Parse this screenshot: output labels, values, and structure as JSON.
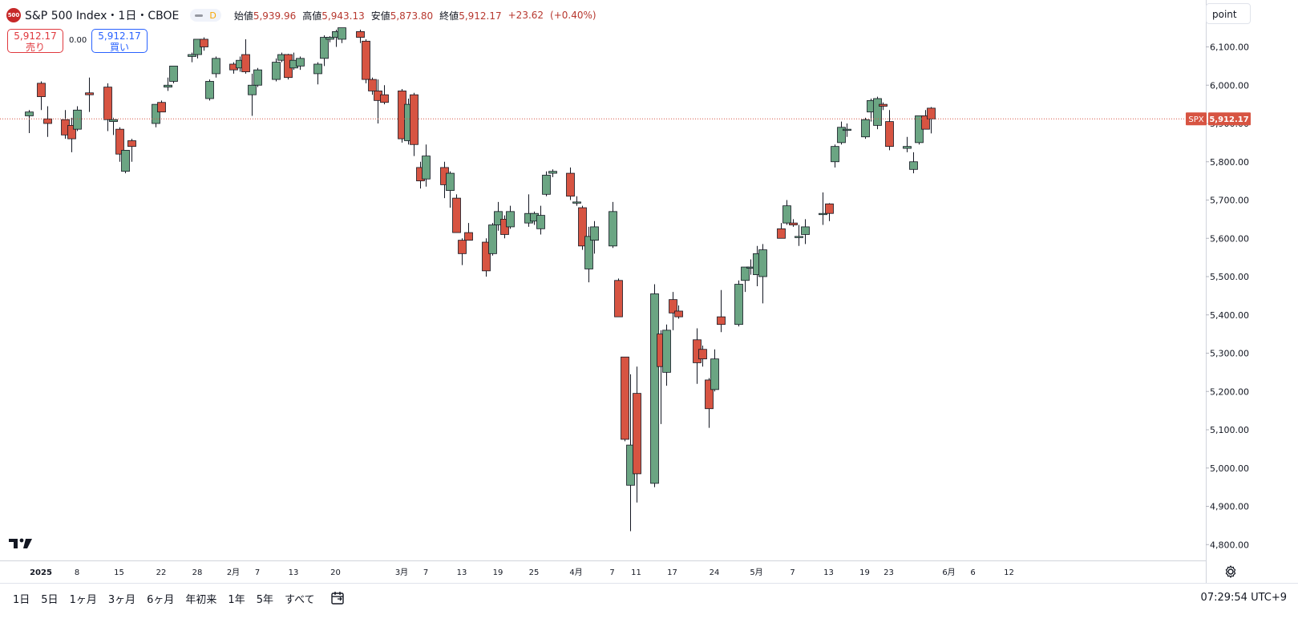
{
  "header": {
    "logo_text": "500",
    "title": "S&P 500 Index・1日・CBOE",
    "pill_d": "D",
    "ohlc": [
      {
        "label": "始値",
        "value": "5,939.96"
      },
      {
        "label": "高値",
        "value": "5,943.13"
      },
      {
        "label": "安値",
        "value": "5,873.80"
      },
      {
        "label": "終値",
        "value": "5,912.17"
      },
      {
        "label": "",
        "value": "+23.62"
      },
      {
        "label": "",
        "value": "(+0.40%)"
      }
    ]
  },
  "trade": {
    "sell_price": "5,912.17",
    "sell_label": "売り",
    "spread": "0.00",
    "buy_price": "5,912.17",
    "buy_label": "買い"
  },
  "scale_button": "point",
  "price_tag": {
    "symbol": "SPX",
    "value": "5,912.17"
  },
  "bottom": {
    "ranges": [
      "1日",
      "5日",
      "1ヶ月",
      "3ヶ月",
      "6ヶ月",
      "年初来",
      "1年",
      "5年",
      "すべて"
    ],
    "clock": "07:29:54 UTC+9"
  },
  "colors": {
    "up": "#6ba583",
    "down": "#d75442",
    "last_price_line": "#d75442"
  },
  "icons": [
    "tradingview-logo-icon",
    "calendar-icon",
    "gear-icon"
  ],
  "chart_data": {
    "type": "candlestick",
    "title": "S&P 500 Index・1日・CBOE",
    "y_ticks": [
      4800,
      4900,
      5000,
      5100,
      5200,
      5300,
      5400,
      5500,
      5600,
      5700,
      5800,
      5900,
      6000,
      6100
    ],
    "y_tick_labels": [
      "4,800.00",
      "4,900.00",
      "5,000.00",
      "5,100.00",
      "5,200.00",
      "5,300.00",
      "5,400.00",
      "5,500.00",
      "5,600.00",
      "5,700.00",
      "5,800.00",
      "5,900.00",
      "6,000.00",
      "6,100.00"
    ],
    "x_ticks": [
      {
        "date": "2025-01-02",
        "label": "2025"
      },
      {
        "date": "2025-01-08",
        "label": "8"
      },
      {
        "date": "2025-01-15",
        "label": "15"
      },
      {
        "date": "2025-01-22",
        "label": "22"
      },
      {
        "date": "2025-01-28",
        "label": "28"
      },
      {
        "date": "2025-02-03",
        "label": "2月"
      },
      {
        "date": "2025-02-07",
        "label": "7"
      },
      {
        "date": "2025-02-13",
        "label": "13"
      },
      {
        "date": "2025-02-20",
        "label": "20"
      },
      {
        "date": "2025-03-03",
        "label": "3月"
      },
      {
        "date": "2025-03-07",
        "label": "7"
      },
      {
        "date": "2025-03-13",
        "label": "13"
      },
      {
        "date": "2025-03-19",
        "label": "19"
      },
      {
        "date": "2025-03-25",
        "label": "25"
      },
      {
        "date": "2025-04-01",
        "label": "4月"
      },
      {
        "date": "2025-04-07",
        "label": "7"
      },
      {
        "date": "2025-04-11",
        "label": "11"
      },
      {
        "date": "2025-04-17",
        "label": "17"
      },
      {
        "date": "2025-04-24",
        "label": "24"
      },
      {
        "date": "2025-05-01",
        "label": "5月"
      },
      {
        "date": "2025-05-07",
        "label": "7"
      },
      {
        "date": "2025-05-13",
        "label": "13"
      },
      {
        "date": "2025-05-19",
        "label": "19"
      },
      {
        "date": "2025-05-23",
        "label": "23"
      },
      {
        "date": "2025-06-02",
        "label": "6月"
      },
      {
        "date": "2025-06-06",
        "label": "6"
      },
      {
        "date": "2025-06-12",
        "label": "12"
      }
    ],
    "last_price": 5912.17,
    "candles": [
      {
        "d": "2024-12-31",
        "o": 5920,
        "h": 5935,
        "l": 5875,
        "c": 5930
      },
      {
        "d": "2025-01-02",
        "o": 6005,
        "h": 6010,
        "l": 5935,
        "c": 5970
      },
      {
        "d": "2025-01-03",
        "o": 5912,
        "h": 5945,
        "l": 5865,
        "c": 5900
      },
      {
        "d": "2025-01-06",
        "o": 5910,
        "h": 5935,
        "l": 5860,
        "c": 5870
      },
      {
        "d": "2025-01-07",
        "o": 5895,
        "h": 5915,
        "l": 5825,
        "c": 5860
      },
      {
        "d": "2025-01-08",
        "o": 5885,
        "h": 5945,
        "l": 5880,
        "c": 5935
      },
      {
        "d": "2025-01-10",
        "o": 5980,
        "h": 6020,
        "l": 5930,
        "c": 5975
      },
      {
        "d": "2025-01-13",
        "o": 5995,
        "h": 6005,
        "l": 5880,
        "c": 5910
      },
      {
        "d": "2025-01-14",
        "o": 5905,
        "h": 5915,
        "l": 5870,
        "c": 5910
      },
      {
        "d": "2025-01-15",
        "o": 5885,
        "h": 5890,
        "l": 5800,
        "c": 5820
      },
      {
        "d": "2025-01-16",
        "o": 5775,
        "h": 5830,
        "l": 5770,
        "c": 5830
      },
      {
        "d": "2025-01-17",
        "o": 5855,
        "h": 5860,
        "l": 5800,
        "c": 5840
      },
      {
        "d": "2025-01-21",
        "o": 5900,
        "h": 5950,
        "l": 5890,
        "c": 5950
      },
      {
        "d": "2025-01-22",
        "o": 5955,
        "h": 5960,
        "l": 5930,
        "c": 5930
      },
      {
        "d": "2025-01-23",
        "o": 5995,
        "h": 6020,
        "l": 5985,
        "c": 6000
      },
      {
        "d": "2025-01-24",
        "o": 6010,
        "h": 6050,
        "l": 6005,
        "c": 6050
      },
      {
        "d": "2025-01-27",
        "o": 6075,
        "h": 6085,
        "l": 6060,
        "c": 6080
      },
      {
        "d": "2025-01-28",
        "o": 6080,
        "h": 6120,
        "l": 6070,
        "c": 6120
      },
      {
        "d": "2025-01-29",
        "o": 6120,
        "h": 6125,
        "l": 6090,
        "c": 6100
      },
      {
        "d": "2025-01-30",
        "o": 5965,
        "h": 6015,
        "l": 5960,
        "c": 6010
      },
      {
        "d": "2025-01-31",
        "o": 6030,
        "h": 6075,
        "l": 6020,
        "c": 6070
      },
      {
        "d": "2025-02-03",
        "o": 6055,
        "h": 6060,
        "l": 6030,
        "c": 6040
      },
      {
        "d": "2025-02-04",
        "o": 6045,
        "h": 6075,
        "l": 6035,
        "c": 6065
      },
      {
        "d": "2025-02-05",
        "o": 6080,
        "h": 6120,
        "l": 6030,
        "c": 6035
      },
      {
        "d": "2025-02-06",
        "o": 5975,
        "h": 6030,
        "l": 5920,
        "c": 6000
      },
      {
        "d": "2025-02-07",
        "o": 6000,
        "h": 6045,
        "l": 5995,
        "c": 6040
      },
      {
        "d": "2025-02-10",
        "o": 6015,
        "h": 6070,
        "l": 6010,
        "c": 6060
      },
      {
        "d": "2025-02-11",
        "o": 6065,
        "h": 6085,
        "l": 6060,
        "c": 6080
      },
      {
        "d": "2025-02-12",
        "o": 6080,
        "h": 6082,
        "l": 6015,
        "c": 6020
      },
      {
        "d": "2025-02-13",
        "o": 6045,
        "h": 6085,
        "l": 6040,
        "c": 6065
      },
      {
        "d": "2025-02-14",
        "o": 6050,
        "h": 6075,
        "l": 6040,
        "c": 6070
      },
      {
        "d": "2025-02-17",
        "o": 6030,
        "h": 6060,
        "l": 6002,
        "c": 6055
      },
      {
        "d": "2025-02-18",
        "o": 6070,
        "h": 6130,
        "l": 6050,
        "c": 6125
      },
      {
        "d": "2025-02-19",
        "o": 6120,
        "h": 6128,
        "l": 6112,
        "c": 6125
      },
      {
        "d": "2025-02-20",
        "o": 6125,
        "h": 6145,
        "l": 6100,
        "c": 6140
      },
      {
        "d": "2025-02-21",
        "o": 6120,
        "h": 6150,
        "l": 6110,
        "c": 6150
      },
      {
        "d": "2025-02-24",
        "o": 6140,
        "h": 6145,
        "l": 6110,
        "c": 6125
      },
      {
        "d": "2025-02-25",
        "o": 6115,
        "h": 6120,
        "l": 6005,
        "c": 6015
      },
      {
        "d": "2025-02-26",
        "o": 6015,
        "h": 6020,
        "l": 5975,
        "c": 5985
      },
      {
        "d": "2025-02-27",
        "o": 5985,
        "h": 6015,
        "l": 5900,
        "c": 5960
      },
      {
        "d": "2025-02-28",
        "o": 5975,
        "h": 6000,
        "l": 5950,
        "c": 5955
      },
      {
        "d": "2025-03-03",
        "o": 5985,
        "h": 5990,
        "l": 5850,
        "c": 5860
      },
      {
        "d": "2025-03-04",
        "o": 5855,
        "h": 5965,
        "l": 5845,
        "c": 5950
      },
      {
        "d": "2025-03-05",
        "o": 5975,
        "h": 5980,
        "l": 5815,
        "c": 5845
      },
      {
        "d": "2025-03-06",
        "o": 5785,
        "h": 5800,
        "l": 5730,
        "c": 5750
      },
      {
        "d": "2025-03-07",
        "o": 5755,
        "h": 5845,
        "l": 5735,
        "c": 5815
      },
      {
        "d": "2025-03-10",
        "o": 5785,
        "h": 5800,
        "l": 5705,
        "c": 5740
      },
      {
        "d": "2025-03-11",
        "o": 5725,
        "h": 5775,
        "l": 5680,
        "c": 5770
      },
      {
        "d": "2025-03-12",
        "o": 5705,
        "h": 5715,
        "l": 5615,
        "c": 5615
      },
      {
        "d": "2025-03-13",
        "o": 5595,
        "h": 5600,
        "l": 5530,
        "c": 5560
      },
      {
        "d": "2025-03-14",
        "o": 5615,
        "h": 5640,
        "l": 5595,
        "c": 5595
      },
      {
        "d": "2025-03-17",
        "o": 5590,
        "h": 5600,
        "l": 5500,
        "c": 5515
      },
      {
        "d": "2025-03-18",
        "o": 5560,
        "h": 5640,
        "l": 5555,
        "c": 5635
      },
      {
        "d": "2025-03-19",
        "o": 5635,
        "h": 5695,
        "l": 5620,
        "c": 5670
      },
      {
        "d": "2025-03-20",
        "o": 5650,
        "h": 5660,
        "l": 5600,
        "c": 5610
      },
      {
        "d": "2025-03-21",
        "o": 5630,
        "h": 5685,
        "l": 5625,
        "c": 5670
      },
      {
        "d": "2025-03-24",
        "o": 5640,
        "h": 5715,
        "l": 5630,
        "c": 5665
      },
      {
        "d": "2025-03-25",
        "o": 5645,
        "h": 5670,
        "l": 5635,
        "c": 5665
      },
      {
        "d": "2025-03-26",
        "o": 5625,
        "h": 5685,
        "l": 5610,
        "c": 5660
      },
      {
        "d": "2025-03-27",
        "o": 5715,
        "h": 5775,
        "l": 5710,
        "c": 5765
      },
      {
        "d": "2025-03-28",
        "o": 5770,
        "h": 5780,
        "l": 5760,
        "c": 5775
      },
      {
        "d": "2025-03-31",
        "o": 5770,
        "h": 5785,
        "l": 5700,
        "c": 5710
      },
      {
        "d": "2025-04-01",
        "o": 5695,
        "h": 5710,
        "l": 5685,
        "c": 5695
      },
      {
        "d": "2025-04-02",
        "o": 5680,
        "h": 5685,
        "l": 5570,
        "c": 5580
      },
      {
        "d": "2025-04-03",
        "o": 5520,
        "h": 5630,
        "l": 5485,
        "c": 5605
      },
      {
        "d": "2025-04-04",
        "o": 5595,
        "h": 5645,
        "l": 5560,
        "c": 5630
      },
      {
        "d": "2025-04-07",
        "o": 5580,
        "h": 5695,
        "l": 5575,
        "c": 5670
      },
      {
        "d": "2025-04-08",
        "o": 5490,
        "h": 5495,
        "l": 5395,
        "c": 5395
      },
      {
        "d": "2025-04-09",
        "o": 5290,
        "h": 5290,
        "l": 5070,
        "c": 5075
      },
      {
        "d": "2025-04-10",
        "o": 4955,
        "h": 5245,
        "l": 4835,
        "c": 5060
      },
      {
        "d": "2025-04-11",
        "o": 5195,
        "h": 5265,
        "l": 4910,
        "c": 4985
      },
      {
        "d": "2025-04-14",
        "o": 4960,
        "h": 5480,
        "l": 4950,
        "c": 5455
      },
      {
        "d": "2025-04-15",
        "o": 5350,
        "h": 5360,
        "l": 5115,
        "c": 5265
      },
      {
        "d": "2025-04-16",
        "o": 5250,
        "h": 5375,
        "l": 5215,
        "c": 5360
      },
      {
        "d": "2025-04-17",
        "o": 5440,
        "h": 5460,
        "l": 5360,
        "c": 5405
      },
      {
        "d": "2025-04-18",
        "o": 5410,
        "h": 5425,
        "l": 5390,
        "c": 5395
      },
      {
        "d": "2025-04-21",
        "o": 5335,
        "h": 5365,
        "l": 5220,
        "c": 5275
      },
      {
        "d": "2025-04-22",
        "o": 5310,
        "h": 5320,
        "l": 5265,
        "c": 5285
      },
      {
        "d": "2025-04-23",
        "o": 5230,
        "h": 5235,
        "l": 5105,
        "c": 5155
      },
      {
        "d": "2025-04-24",
        "o": 5205,
        "h": 5310,
        "l": 5200,
        "c": 5285
      },
      {
        "d": "2025-04-25",
        "o": 5395,
        "h": 5465,
        "l": 5355,
        "c": 5375
      },
      {
        "d": "2025-04-28",
        "o": 5375,
        "h": 5490,
        "l": 5370,
        "c": 5480
      },
      {
        "d": "2025-04-29",
        "o": 5490,
        "h": 5525,
        "l": 5460,
        "c": 5525
      },
      {
        "d": "2025-04-30",
        "o": 5525,
        "h": 5545,
        "l": 5505,
        "c": 5525
      },
      {
        "d": "2025-05-01",
        "o": 5505,
        "h": 5580,
        "l": 5475,
        "c": 5560
      },
      {
        "d": "2025-05-02",
        "o": 5500,
        "h": 5585,
        "l": 5430,
        "c": 5570
      },
      {
        "d": "2025-05-05",
        "o": 5625,
        "h": 5640,
        "l": 5600,
        "c": 5600
      },
      {
        "d": "2025-05-06",
        "o": 5640,
        "h": 5700,
        "l": 5635,
        "c": 5685
      },
      {
        "d": "2025-05-07",
        "o": 5640,
        "h": 5650,
        "l": 5630,
        "c": 5635
      },
      {
        "d": "2025-05-08",
        "o": 5605,
        "h": 5635,
        "l": 5580,
        "c": 5605
      },
      {
        "d": "2025-05-09",
        "o": 5610,
        "h": 5650,
        "l": 5585,
        "c": 5630
      },
      {
        "d": "2025-05-12",
        "o": 5665,
        "h": 5720,
        "l": 5635,
        "c": 5665
      },
      {
        "d": "2025-05-13",
        "o": 5690,
        "h": 5692,
        "l": 5645,
        "c": 5665
      },
      {
        "d": "2025-05-14",
        "o": 5800,
        "h": 5845,
        "l": 5785,
        "c": 5840
      },
      {
        "d": "2025-05-15",
        "o": 5850,
        "h": 5905,
        "l": 5845,
        "c": 5890
      },
      {
        "d": "2025-05-16",
        "o": 5885,
        "h": 5900,
        "l": 5865,
        "c": 5885
      },
      {
        "d": "2025-05-19",
        "o": 5865,
        "h": 5915,
        "l": 5860,
        "c": 5910
      },
      {
        "d": "2025-05-20",
        "o": 5930,
        "h": 5965,
        "l": 5905,
        "c": 5960
      },
      {
        "d": "2025-05-21",
        "o": 5895,
        "h": 5970,
        "l": 5885,
        "c": 5965
      },
      {
        "d": "2025-05-22",
        "o": 5950,
        "h": 5955,
        "l": 5935,
        "c": 5945
      },
      {
        "d": "2025-05-23",
        "o": 5905,
        "h": 5935,
        "l": 5830,
        "c": 5840
      },
      {
        "d": "2025-05-26",
        "o": 5835,
        "h": 5865,
        "l": 5825,
        "c": 5840
      },
      {
        "d": "2025-05-27",
        "o": 5780,
        "h": 5825,
        "l": 5770,
        "c": 5800
      },
      {
        "d": "2025-05-28",
        "o": 5850,
        "h": 5920,
        "l": 5845,
        "c": 5920
      },
      {
        "d": "2025-05-29",
        "o": 5920,
        "h": 5935,
        "l": 5885,
        "c": 5885
      },
      {
        "d": "2025-05-30",
        "o": 5940,
        "h": 5943,
        "l": 5874,
        "c": 5912
      }
    ]
  }
}
